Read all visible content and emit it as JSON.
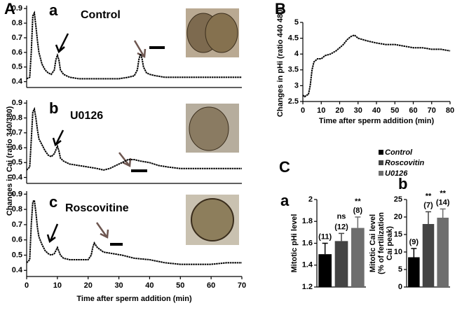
{
  "chart_data": [
    {
      "type": "line",
      "panel": "A",
      "label": "a",
      "annotation": "Control",
      "x": [
        0,
        1,
        1.5,
        2,
        2.5,
        3,
        3.5,
        4,
        5,
        6,
        7,
        8,
        9,
        9.5,
        10,
        10.5,
        11,
        12,
        14,
        17,
        20,
        25,
        30,
        33,
        35,
        36,
        36.5,
        37,
        37.5,
        38,
        39,
        40,
        42,
        45,
        50,
        55,
        60,
        65,
        70
      ],
      "values": [
        0.42,
        0.43,
        0.6,
        0.85,
        0.87,
        0.78,
        0.68,
        0.6,
        0.52,
        0.48,
        0.46,
        0.45,
        0.48,
        0.55,
        0.58,
        0.55,
        0.48,
        0.45,
        0.43,
        0.42,
        0.42,
        0.42,
        0.42,
        0.43,
        0.44,
        0.48,
        0.55,
        0.59,
        0.56,
        0.5,
        0.46,
        0.45,
        0.44,
        0.43,
        0.43,
        0.43,
        0.43,
        0.43,
        0.43
      ],
      "xlim": [
        0,
        70
      ],
      "ylim": [
        0.36,
        0.92
      ],
      "yticks": [
        0.4,
        0.5,
        0.6,
        0.7,
        0.8,
        0.9
      ]
    },
    {
      "type": "line",
      "label": "b",
      "annotation": "U0126",
      "y_label": "Changes in Cai (ratio 340/380)",
      "x": [
        0,
        1,
        1.5,
        2,
        2.5,
        3,
        3.5,
        4,
        5,
        6,
        7,
        8,
        9,
        10,
        10.5,
        11,
        12,
        14,
        17,
        20,
        23,
        25,
        27,
        29,
        31,
        33,
        35,
        37,
        40,
        43,
        46,
        50,
        55,
        60,
        65,
        70
      ],
      "values": [
        0.45,
        0.47,
        0.65,
        0.84,
        0.86,
        0.8,
        0.72,
        0.66,
        0.62,
        0.58,
        0.55,
        0.54,
        0.56,
        0.61,
        0.58,
        0.53,
        0.51,
        0.49,
        0.48,
        0.47,
        0.46,
        0.45,
        0.46,
        0.48,
        0.5,
        0.52,
        0.52,
        0.51,
        0.5,
        0.48,
        0.47,
        0.46,
        0.46,
        0.46,
        0.46,
        0.46
      ],
      "xlim": [
        0,
        70
      ],
      "ylim": [
        0.36,
        0.92
      ],
      "yticks": [
        0.4,
        0.5,
        0.6,
        0.7,
        0.8,
        0.9
      ]
    },
    {
      "type": "line",
      "label": "c",
      "annotation": "Roscovitine",
      "x_label": "Time after sperm addition (min)",
      "x": [
        0,
        1,
        1.5,
        2,
        2.5,
        3,
        3.5,
        4,
        5,
        6,
        7,
        8,
        9,
        10,
        11,
        12,
        14,
        17,
        20,
        21,
        21.5,
        22,
        23,
        25,
        28,
        31,
        35,
        40,
        45,
        50,
        55,
        60,
        65,
        70
      ],
      "values": [
        0.45,
        0.47,
        0.7,
        0.85,
        0.86,
        0.78,
        0.68,
        0.62,
        0.57,
        0.53,
        0.51,
        0.5,
        0.51,
        0.55,
        0.5,
        0.48,
        0.47,
        0.47,
        0.47,
        0.5,
        0.55,
        0.58,
        0.55,
        0.52,
        0.51,
        0.5,
        0.48,
        0.47,
        0.45,
        0.44,
        0.44,
        0.44,
        0.45,
        0.45
      ],
      "xlim": [
        0,
        70
      ],
      "xticks": [
        0,
        10,
        20,
        30,
        40,
        50,
        60,
        70
      ],
      "ylim": [
        0.36,
        0.92
      ],
      "yticks": [
        0.4,
        0.5,
        0.6,
        0.7,
        0.8,
        0.9
      ]
    },
    {
      "type": "line",
      "panel": "B",
      "x_label": "Time after sperm addition (min)",
      "y_label": "Changes in pHi (ratio 440 480)",
      "x": [
        0,
        1,
        2,
        3,
        4,
        5,
        6,
        7,
        8,
        10,
        12,
        15,
        18,
        20,
        22,
        24,
        26,
        28,
        30,
        33,
        36,
        40,
        45,
        50,
        55,
        60,
        65,
        70,
        75,
        80
      ],
      "values": [
        2.7,
        2.65,
        2.7,
        2.72,
        3.0,
        3.5,
        3.75,
        3.8,
        3.85,
        3.85,
        3.95,
        4.0,
        4.1,
        4.2,
        4.3,
        4.45,
        4.55,
        4.6,
        4.5,
        4.45,
        4.4,
        4.35,
        4.3,
        4.3,
        4.25,
        4.2,
        4.2,
        4.15,
        4.15,
        4.1
      ],
      "xlim": [
        0,
        80
      ],
      "xticks": [
        0,
        10,
        20,
        30,
        40,
        50,
        60,
        70,
        80
      ],
      "ylim": [
        2.5,
        5
      ],
      "yticks": [
        2.5,
        3,
        3.5,
        4,
        4.5,
        5
      ]
    },
    {
      "type": "bar",
      "panel": "C",
      "label": "a",
      "y_label": [
        "Mitotic pHi level"
      ],
      "legend": [
        "Control",
        "Roscovitin",
        "U0126"
      ],
      "colors": [
        "#000000",
        "#444444",
        "#6e6e6e"
      ],
      "values": [
        1.5,
        1.62,
        1.74
      ],
      "errors": [
        0.1,
        0.07,
        0.1
      ],
      "n_labels": [
        "(11)",
        "(12)",
        "(8)"
      ],
      "significance": [
        null,
        "ns",
        "**"
      ],
      "ylim": [
        1.2,
        2
      ],
      "yticks": [
        1.2,
        1.4,
        1.6,
        1.8,
        2
      ]
    },
    {
      "type": "bar",
      "label": "b",
      "y_label": [
        "Mitotic Cai level",
        "(% of fertilization",
        "Cai peak)"
      ],
      "colors": [
        "#000000",
        "#444444",
        "#6e6e6e"
      ],
      "values": [
        8.5,
        18,
        19.8
      ],
      "errors": [
        2.5,
        3.5,
        2.5
      ],
      "n_labels": [
        "(9)",
        "(7)",
        "(14)"
      ],
      "significance": [
        null,
        "**",
        "**"
      ],
      "ylim": [
        0,
        25
      ],
      "yticks": [
        0,
        5,
        10,
        15,
        20,
        25
      ]
    }
  ]
}
